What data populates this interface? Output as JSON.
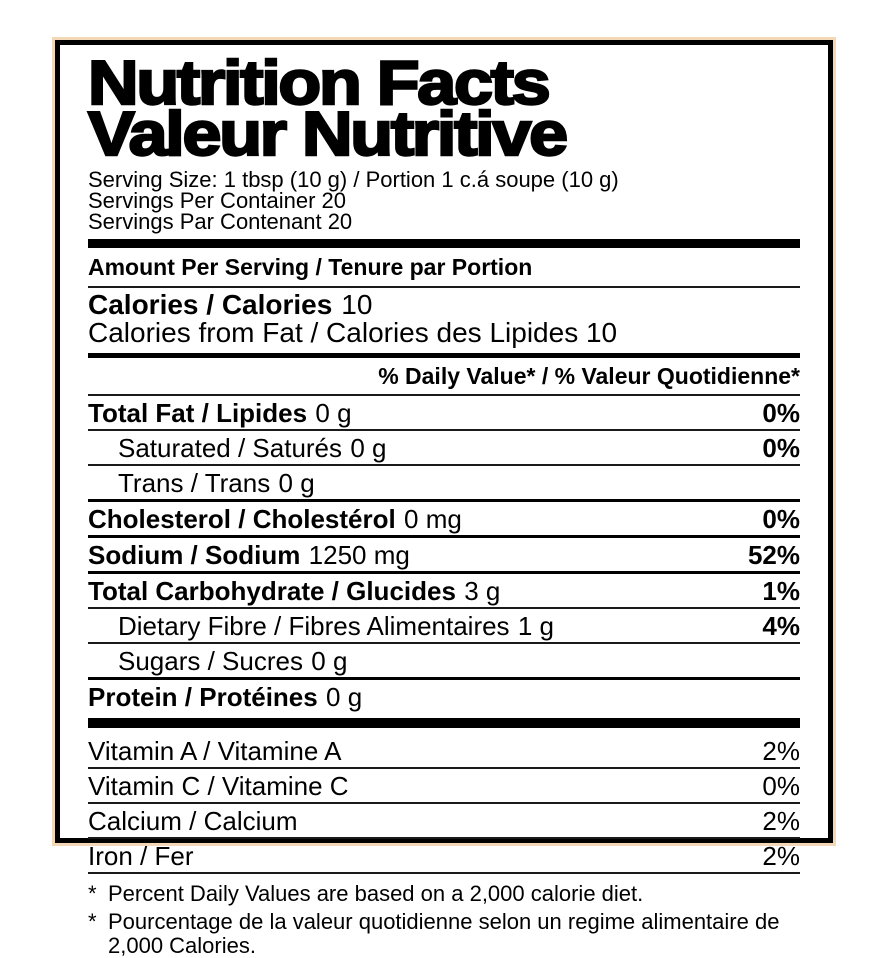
{
  "header": {
    "title_en": "Nutrition Facts",
    "title_fr": "Valeur Nutritive"
  },
  "serving": {
    "size": "Serving Size: 1 tbsp (10 g) / Portion 1 c.á soupe (10 g)",
    "per_container": "Servings Per Container 20",
    "par_contenant": "Servings Par Contenant 20"
  },
  "amount_per_serving": "Amount Per Serving / Tenure par Portion",
  "calories": {
    "label": "Calories / Calories",
    "value": "10",
    "from_fat": "Calories from Fat / Calories des Lipides 10"
  },
  "daily_value_header": "% Daily Value* / % Valeur Quotidienne*",
  "nutrients": [
    {
      "label": "Total Fat / Lipides",
      "amount": "0 g",
      "dv": "0%"
    },
    {
      "label": "Saturated / Saturés",
      "amount": "0 g",
      "dv": "0%"
    },
    {
      "label": "Trans / Trans",
      "amount": "0 g",
      "dv": ""
    },
    {
      "label": "Cholesterol / Cholestérol",
      "amount": "0 mg",
      "dv": "0%"
    },
    {
      "label": "Sodium / Sodium",
      "amount": "1250 mg",
      "dv": "52%"
    },
    {
      "label": "Total Carbohydrate / Glucides",
      "amount": "3 g",
      "dv": "1%"
    },
    {
      "label": "Dietary Fibre / Fibres Alimentaires",
      "amount": "1 g",
      "dv": "4%"
    },
    {
      "label": "Sugars / Sucres",
      "amount": "0 g",
      "dv": ""
    },
    {
      "label": "Protein / Protéines",
      "amount": "0 g",
      "dv": ""
    }
  ],
  "vitamins": [
    {
      "label": "Vitamin A / Vitamine A",
      "dv": "2%"
    },
    {
      "label": "Vitamin C / Vitamine C",
      "dv": "0%"
    },
    {
      "label": "Calcium / Calcium",
      "dv": "2%"
    },
    {
      "label": "Iron / Fer",
      "dv": "2%"
    }
  ],
  "footnotes": [
    {
      "marker": "*",
      "text": "Percent Daily Values are based on a 2,000 calorie diet."
    },
    {
      "marker": "*",
      "text": "Pourcentage de la valeur quotidienne selon un regime alimentaire de 2,000 Calories."
    }
  ],
  "colors": {
    "frame": "#f2d8b6",
    "ink": "#000000",
    "background": "#ffffff"
  }
}
